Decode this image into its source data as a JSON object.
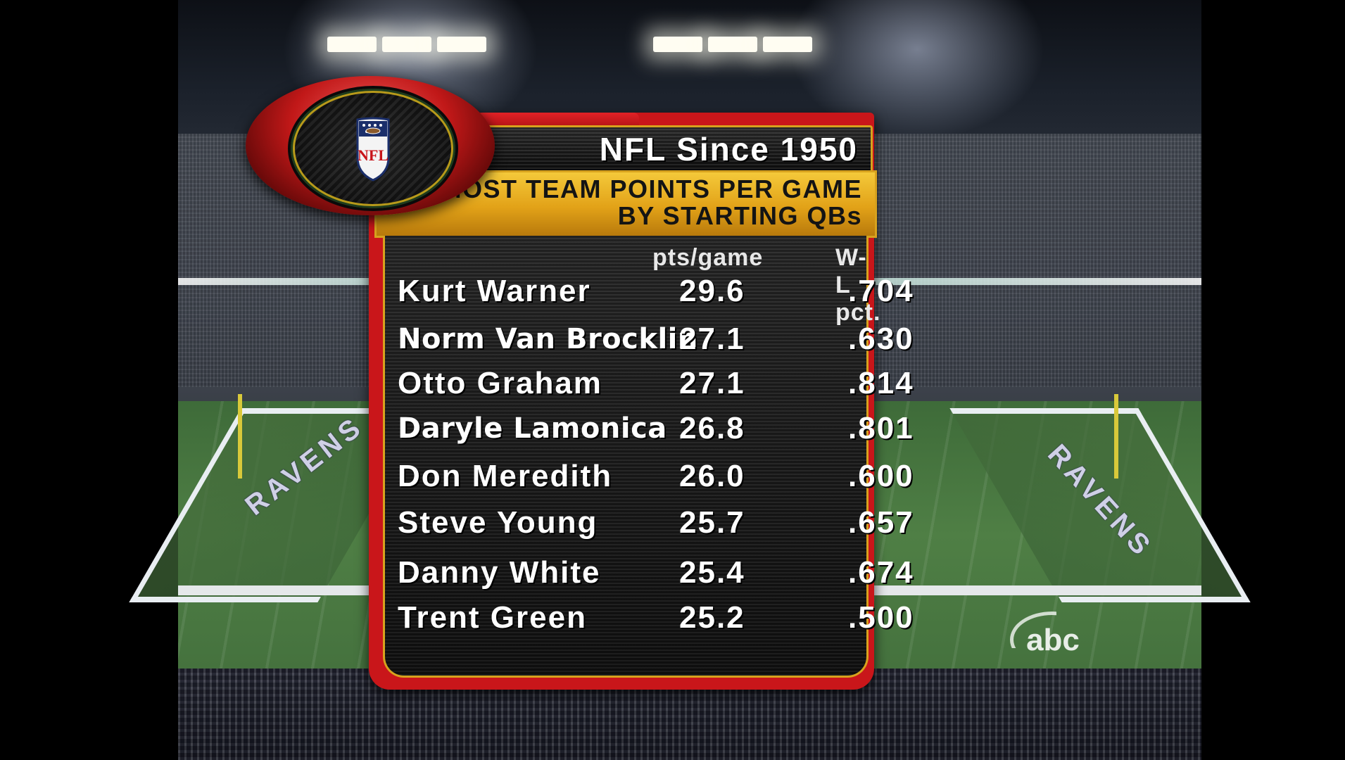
{
  "broadcast": {
    "network_bug": "abc",
    "field_text": "RAVENS",
    "colors": {
      "board_red": "#c9161a",
      "gold": "#e2a218",
      "panel_black": "#141414",
      "text_white": "#ffffff"
    },
    "logo": {
      "league": "NFL",
      "icon": "nfl-shield-icon"
    }
  },
  "graphic": {
    "title": "NFL Since 1950",
    "subtitle_line1": "MOST TEAM POINTS PER GAME",
    "subtitle_line2": "BY STARTING QBs",
    "columns": {
      "pts": "pts/game",
      "wl": "W-L pct."
    },
    "rows": [
      {
        "name": "Kurt Warner",
        "pts": "29.6",
        "wl": ".704"
      },
      {
        "name": "Norm Van Brocklin",
        "pts": "27.1",
        "wl": ".630"
      },
      {
        "name": "Otto Graham",
        "pts": "27.1",
        "wl": ".814"
      },
      {
        "name": "Daryle Lamonica",
        "pts": "26.8",
        "wl": ".801"
      },
      {
        "name": "Don Meredith",
        "pts": "26.0",
        "wl": ".600"
      },
      {
        "name": "Steve Young",
        "pts": "25.7",
        "wl": ".657"
      },
      {
        "name": "Danny White",
        "pts": "25.4",
        "wl": ".674"
      },
      {
        "name": "Trent Green",
        "pts": "25.2",
        "wl": ".500"
      }
    ]
  }
}
